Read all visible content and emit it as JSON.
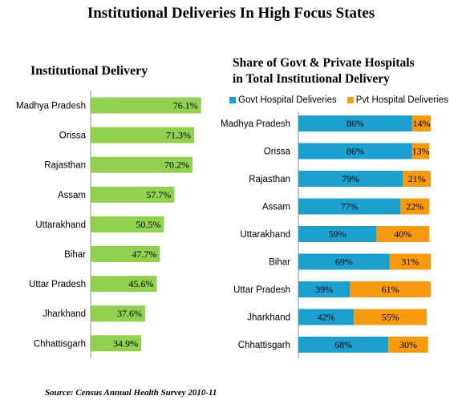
{
  "title": "Institutional Deliveries  In High Focus States",
  "source": "Source: Census Annual Health Survey 2010-11",
  "colors": {
    "left_bar": "#92d050",
    "govt": "#1d9fd0",
    "pvt": "#f79a0f"
  },
  "chart_data": [
    {
      "type": "bar",
      "title": "Institutional Delivery",
      "orientation": "horizontal",
      "categories": [
        "Madhya Pradesh",
        "Orissa",
        "Rajasthan",
        "Assam",
        "Uttarakhand",
        "Bihar",
        "Uttar Pradesh",
        "Jharkhand",
        "Chhattisgarh"
      ],
      "values": [
        76.1,
        71.3,
        70.2,
        57.7,
        50.5,
        47.7,
        45.6,
        37.6,
        34.9
      ],
      "labels": [
        "76.1%",
        "71.3%",
        "70.2%",
        "57.7%",
        "50.5%",
        "47.7%",
        "45.6%",
        "37.6%",
        "34.9%"
      ],
      "xlim": [
        0,
        100
      ]
    },
    {
      "type": "bar",
      "stacked": true,
      "orientation": "horizontal",
      "title": "Share of Govt & Private Hospitals in Total Institutional Delivery",
      "title_lines": [
        "Share of Govt & Private Hospitals",
        "in Total Institutional Delivery"
      ],
      "categories": [
        "Madhya Pradesh",
        "Orissa",
        "Rajasthan",
        "Assam",
        "Uttarakhand",
        "Bihar",
        "Uttar Pradesh",
        "Jharkhand",
        "Chhattisgarh"
      ],
      "series": [
        {
          "name": "Govt Hospital Deliveries",
          "values": [
            86,
            86,
            79,
            77,
            59,
            69,
            39,
            42,
            68
          ],
          "labels": [
            "86%",
            "86%",
            "79%",
            "77%",
            "59%",
            "69%",
            "39%",
            "42%",
            "68%"
          ]
        },
        {
          "name": "Pvt Hospital Deliveries",
          "values": [
            14,
            13,
            21,
            22,
            40,
            31,
            61,
            55,
            30
          ],
          "labels": [
            "14%",
            "13%",
            "21%",
            "22%",
            "40%",
            "31%",
            "61%",
            "55%",
            "30%"
          ]
        }
      ],
      "legend": "top",
      "xlim": [
        0,
        100
      ]
    }
  ]
}
